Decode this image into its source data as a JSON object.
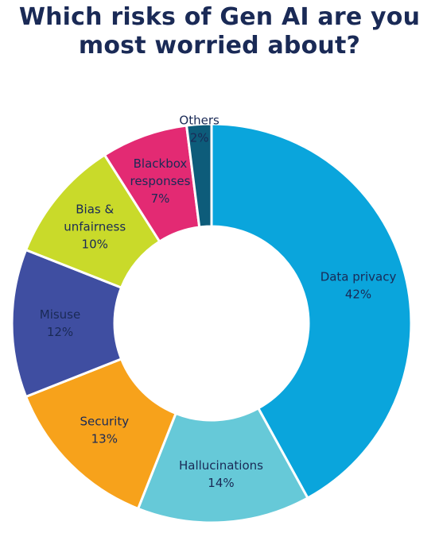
{
  "title_line1": "Which risks of Gen AI are you",
  "title_line2": "most worried about?",
  "chart_data": {
    "type": "pie",
    "donut": true,
    "title": "Which risks of Gen AI are you most worried about?",
    "slices": [
      {
        "label": [
          "Data privacy"
        ],
        "value": 42,
        "value_label": "42%",
        "color": "#0aa5dc"
      },
      {
        "label": [
          "Hallucinations"
        ],
        "value": 14,
        "value_label": "14%",
        "color": "#66c9d8"
      },
      {
        "label": [
          "Security"
        ],
        "value": 13,
        "value_label": "13%",
        "color": "#f7a21b"
      },
      {
        "label": [
          "Misuse"
        ],
        "value": 12,
        "value_label": "12%",
        "color": "#3f4ea1"
      },
      {
        "label": [
          "Bias &",
          "unfairness"
        ],
        "value": 10,
        "value_label": "10%",
        "color": "#c9da2a"
      },
      {
        "label": [
          "Blackbox",
          "responses"
        ],
        "value": 7,
        "value_label": "7%",
        "color": "#e32a73"
      },
      {
        "label": [
          "Others"
        ],
        "value": 2,
        "value_label": "2%",
        "color": "#0d5c7a"
      }
    ]
  }
}
